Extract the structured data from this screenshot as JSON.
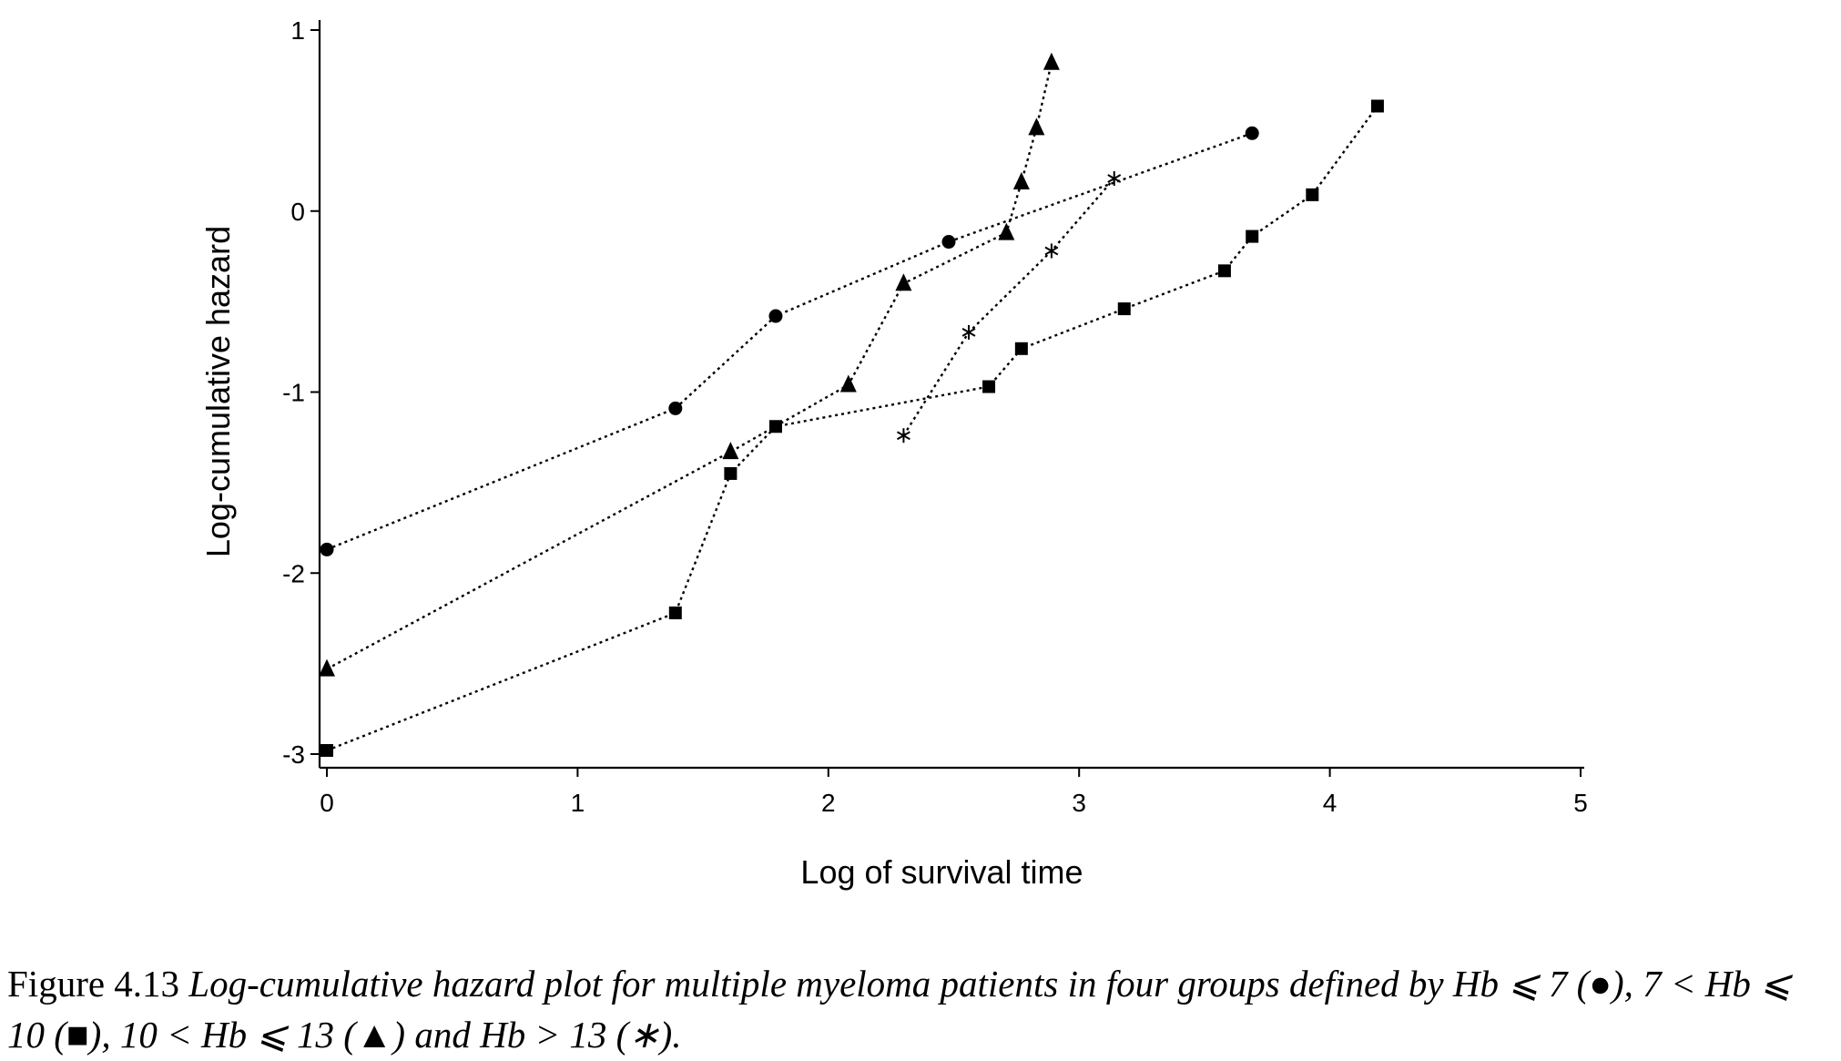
{
  "caption": {
    "figure_number": "Figure 4.13",
    "text": "Log-cumulative hazard plot for multiple myeloma patients in four groups defined by Hb ⩽ 7 (●), 7 < Hb ⩽ 10 (■), 10 < Hb ⩽ 13 (▲) and Hb > 13 (∗)."
  },
  "chart_data": {
    "type": "line",
    "title": "",
    "xlabel": "Log of survival time",
    "ylabel": "Log-cumulative hazard",
    "xlim": [
      0,
      5
    ],
    "ylim": [
      -3,
      1
    ],
    "xticks": [
      "0",
      "1",
      "2",
      "3",
      "4",
      "5"
    ],
    "yticks": [
      "1",
      "0",
      "-1",
      "-2",
      "-3"
    ],
    "grid": false,
    "legend": "none",
    "series": [
      {
        "marker": "circle",
        "line_style": "dotted",
        "points": [
          [
            0.0,
            -1.87
          ],
          [
            1.39,
            -1.09
          ],
          [
            1.79,
            -0.58
          ],
          [
            2.48,
            -0.17
          ],
          [
            3.69,
            0.43
          ]
        ]
      },
      {
        "marker": "square",
        "line_style": "dotted",
        "points": [
          [
            0.0,
            -2.98
          ],
          [
            1.39,
            -2.22
          ],
          [
            1.61,
            -1.45
          ],
          [
            1.79,
            -1.19
          ],
          [
            2.64,
            -0.97
          ],
          [
            2.77,
            -0.76
          ],
          [
            3.18,
            -0.54
          ],
          [
            3.58,
            -0.33
          ],
          [
            3.69,
            -0.14
          ],
          [
            3.93,
            0.09
          ],
          [
            4.19,
            0.58
          ]
        ]
      },
      {
        "marker": "triangle",
        "line_style": "dotted",
        "points": [
          [
            0.0,
            -2.53
          ],
          [
            1.61,
            -1.33
          ],
          [
            2.08,
            -0.96
          ],
          [
            2.3,
            -0.4
          ],
          [
            2.71,
            -0.12
          ],
          [
            2.77,
            0.16
          ],
          [
            2.83,
            0.46
          ],
          [
            2.89,
            0.82
          ]
        ]
      },
      {
        "marker": "star",
        "line_style": "dotted",
        "points": [
          [
            2.3,
            -1.24
          ],
          [
            2.56,
            -0.67
          ],
          [
            2.89,
            -0.22
          ],
          [
            3.14,
            0.18
          ]
        ]
      }
    ]
  }
}
